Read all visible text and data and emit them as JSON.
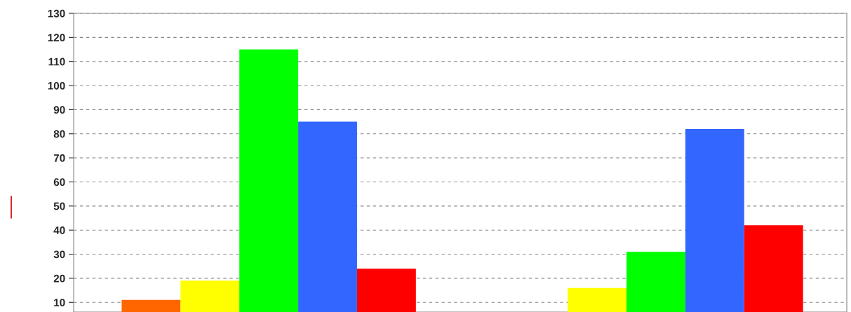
{
  "chart_data": {
    "type": "bar",
    "categories": [
      null,
      null
    ],
    "series": [
      {
        "color": "#ff6600",
        "values": [
          11,
          null
        ]
      },
      {
        "color": "#ffff00",
        "values": [
          19,
          16
        ]
      },
      {
        "color": "#00ff00",
        "values": [
          115,
          31
        ]
      },
      {
        "color": "#3366ff",
        "values": [
          85,
          82
        ]
      },
      {
        "color": "#ff0000",
        "values": [
          24,
          42
        ]
      }
    ],
    "ylim": [
      6,
      130
    ],
    "yticks": [
      10,
      20,
      30,
      40,
      50,
      60,
      70,
      80,
      90,
      100,
      110,
      120,
      130
    ],
    "grid": "y",
    "legend": false
  }
}
